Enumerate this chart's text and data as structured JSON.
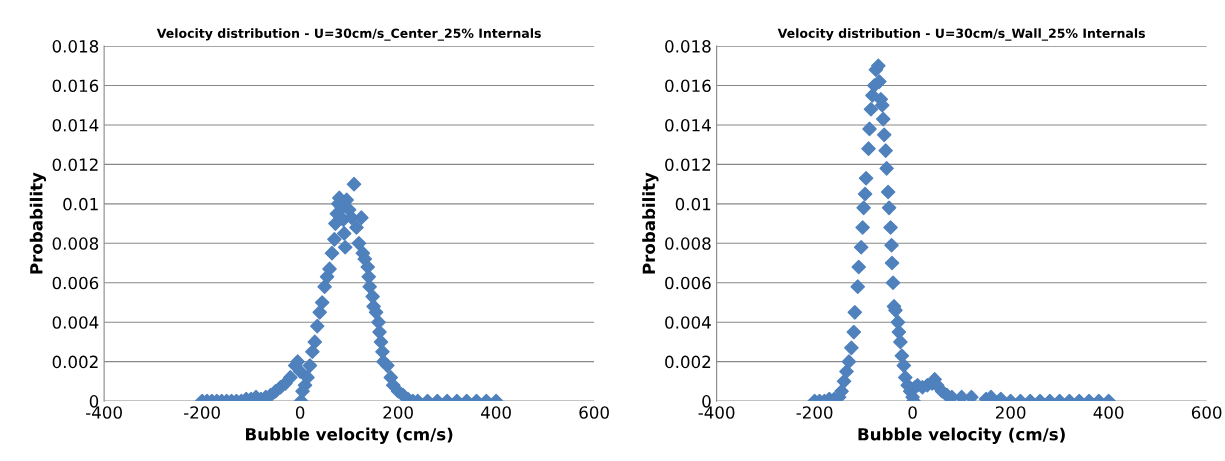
{
  "chart_data": [
    {
      "type": "scatter",
      "title": "Velocity distribution - U=30cm/s_Center_25% Internals",
      "xlabel": "Bubble velocity (cm/s)",
      "ylabel": "Probability",
      "xlim": [
        -400,
        600
      ],
      "xticks": [
        -400,
        -200,
        0,
        200,
        400,
        600
      ],
      "ylim": [
        0,
        0.018
      ],
      "yticks": [
        0,
        0.002,
        0.004,
        0.006,
        0.008,
        0.01,
        0.012,
        0.014,
        0.016,
        0.018
      ],
      "grid": "y",
      "legend": false,
      "marker": "diamond",
      "series": [
        {
          "color": "#4f81bd",
          "x": [
            -200,
            -190,
            -180,
            -170,
            -160,
            -150,
            -140,
            -130,
            -120,
            -110,
            -100,
            -90,
            -80,
            -70,
            -60,
            -50,
            -40,
            -30,
            -20,
            -10,
            -5,
            0,
            2,
            5,
            10,
            15,
            20,
            25,
            30,
            35,
            40,
            45,
            50,
            55,
            60,
            65,
            70,
            72,
            75,
            78,
            80,
            85,
            88,
            90,
            92,
            95,
            100,
            105,
            110,
            115,
            120,
            125,
            128,
            132,
            138,
            140,
            142,
            148,
            150,
            155,
            160,
            162,
            165,
            168,
            170,
            178,
            185,
            190,
            200,
            210,
            220,
            230,
            240,
            260,
            280,
            300,
            320,
            340,
            360,
            380,
            400
          ],
          "values": [
            0,
            0,
            0,
            0,
            0,
            0,
            0,
            0,
            0,
            0.0001,
            0.0001,
            0.0002,
            0.0001,
            0.0002,
            0.0003,
            0.0005,
            0.0007,
            0.0009,
            0.0012,
            0.0018,
            0.002,
            0.0015,
            0,
            0.0005,
            0.0008,
            0.0012,
            0.0018,
            0.0025,
            0.003,
            0.0038,
            0.0045,
            0.005,
            0.0058,
            0.0063,
            0.0067,
            0.0075,
            0.0082,
            0.009,
            0.0095,
            0.01,
            0.0103,
            0.0098,
            0.0092,
            0.0085,
            0.0078,
            0.0102,
            0.0097,
            0.0093,
            0.011,
            0.0088,
            0.008,
            0.0093,
            0.0075,
            0.0072,
            0.0068,
            0.0063,
            0.0058,
            0.0053,
            0.0048,
            0.0045,
            0.004,
            0.0035,
            0.003,
            0.0025,
            0.002,
            0.0018,
            0.0012,
            0.0008,
            0.0005,
            0.0003,
            0.0001,
            0,
            0,
            0,
            0,
            0,
            0,
            0,
            0,
            0,
            0
          ]
        }
      ]
    },
    {
      "type": "scatter",
      "title": "Velocity distribution - U=30cm/s_Wall_25% Internals",
      "xlabel": "Bubble velocity (cm/s)",
      "ylabel": "Probability",
      "xlim": [
        -400,
        600
      ],
      "xticks": [
        -400,
        -200,
        0,
        200,
        400,
        600
      ],
      "ylim": [
        0,
        0.018
      ],
      "yticks": [
        0,
        0.002,
        0.004,
        0.006,
        0.008,
        0.01,
        0.012,
        0.014,
        0.016,
        0.018
      ],
      "grid": "y",
      "legend": false,
      "marker": "diamond",
      "series": [
        {
          "color": "#4f81bd",
          "x": [
            -200,
            -190,
            -180,
            -170,
            -160,
            -150,
            -145,
            -140,
            -135,
            -130,
            -125,
            -120,
            -118,
            -112,
            -110,
            -105,
            -102,
            -100,
            -97,
            -95,
            -90,
            -88,
            -85,
            -82,
            -78,
            -75,
            -70,
            -68,
            -65,
            -62,
            -60,
            -58,
            -55,
            -53,
            -50,
            -48,
            -45,
            -43,
            -42,
            -40,
            -38,
            -35,
            -30,
            -28,
            -25,
            -22,
            -18,
            -15,
            -10,
            -5,
            0,
            2,
            5,
            10,
            20,
            30,
            40,
            45,
            50,
            60,
            70,
            80,
            100,
            120,
            150,
            160,
            180,
            200,
            220,
            240,
            260,
            280,
            300,
            320,
            340,
            360,
            380,
            400
          ],
          "values": [
            0,
            0,
            0,
            0.0001,
            0.0001,
            0.0002,
            0.0005,
            0.001,
            0.0015,
            0.002,
            0.0027,
            0.0035,
            0.0045,
            0.0058,
            0.0068,
            0.0078,
            0.0088,
            0.0098,
            0.0105,
            0.0113,
            0.0128,
            0.0138,
            0.0148,
            0.0155,
            0.016,
            0.0168,
            0.017,
            0.0162,
            0.0153,
            0.015,
            0.0143,
            0.0135,
            0.0127,
            0.0118,
            0.0106,
            0.0098,
            0.0088,
            0.0079,
            0.007,
            0.006,
            0.0048,
            0.0046,
            0.004,
            0.0035,
            0.003,
            0.0023,
            0.0018,
            0.0012,
            0.0008,
            0.0005,
            0.0002,
            0,
            0.0007,
            0.0008,
            0.0007,
            0.0008,
            0.0009,
            0.0011,
            0.0008,
            0.0005,
            0.0003,
            0.0002,
            0.0002,
            0.0002,
            0.0001,
            0.0002,
            0.0001,
            0,
            0,
            0,
            0,
            0,
            0,
            0,
            0,
            0,
            0,
            0
          ]
        }
      ]
    }
  ]
}
